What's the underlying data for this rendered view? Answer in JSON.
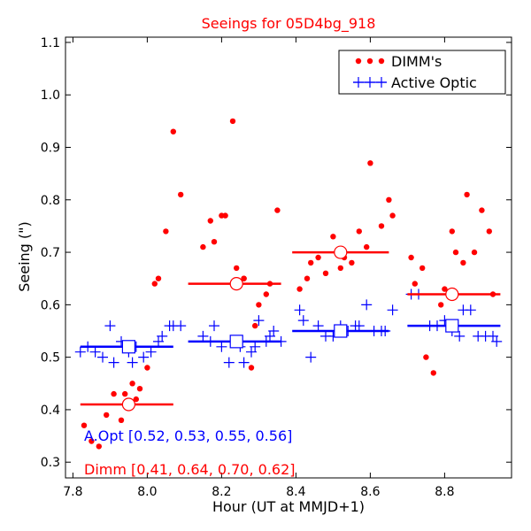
{
  "chart_data": {
    "type": "scatter",
    "title": "Seeings for 05D4bg_918",
    "xlabel": "Hour (UT at MMJD+1)",
    "ylabel": "Seeing (\")",
    "xlim": [
      7.78,
      8.98
    ],
    "ylim": [
      0.27,
      1.11
    ],
    "x_ticks": [
      7.8,
      8.0,
      8.2,
      8.4,
      8.6,
      8.8
    ],
    "x_tick_labels": [
      "7.8",
      "8.0",
      "8.2",
      "8.4",
      "8.6",
      "8.8"
    ],
    "y_ticks": [
      0.3,
      0.4,
      0.5,
      0.6,
      0.7,
      0.8,
      0.9,
      1.0,
      1.1
    ],
    "y_tick_labels": [
      "0.3",
      "0.4",
      "0.5",
      "0.6",
      "0.7",
      "0.8",
      "0.9",
      "1.0",
      "1.1"
    ],
    "legend_position": "top-right",
    "colors": {
      "dimm": "#ff0000",
      "active_optic": "#0000ff"
    },
    "series": [
      {
        "name": "DIMM's",
        "marker": "dot",
        "color": "#ff0000",
        "points": [
          [
            7.83,
            0.37
          ],
          [
            7.85,
            0.34
          ],
          [
            7.87,
            0.33
          ],
          [
            7.89,
            0.39
          ],
          [
            7.91,
            0.43
          ],
          [
            7.93,
            0.38
          ],
          [
            7.94,
            0.43
          ],
          [
            7.96,
            0.45
          ],
          [
            7.97,
            0.42
          ],
          [
            7.98,
            0.44
          ],
          [
            8.0,
            0.48
          ],
          [
            8.02,
            0.64
          ],
          [
            8.03,
            0.65
          ],
          [
            8.05,
            0.74
          ],
          [
            8.07,
            0.93
          ],
          [
            8.09,
            0.81
          ],
          [
            8.15,
            0.71
          ],
          [
            8.17,
            0.76
          ],
          [
            8.18,
            0.72
          ],
          [
            8.2,
            0.77
          ],
          [
            8.21,
            0.77
          ],
          [
            8.23,
            0.95
          ],
          [
            8.24,
            0.67
          ],
          [
            8.26,
            0.65
          ],
          [
            8.26,
            0.65
          ],
          [
            8.28,
            0.48
          ],
          [
            8.29,
            0.56
          ],
          [
            8.3,
            0.6
          ],
          [
            8.32,
            0.62
          ],
          [
            8.33,
            0.64
          ],
          [
            8.35,
            0.78
          ],
          [
            8.41,
            0.63
          ],
          [
            8.43,
            0.65
          ],
          [
            8.44,
            0.68
          ],
          [
            8.46,
            0.69
          ],
          [
            8.48,
            0.66
          ],
          [
            8.5,
            0.73
          ],
          [
            8.52,
            0.67
          ],
          [
            8.53,
            0.69
          ],
          [
            8.55,
            0.68
          ],
          [
            8.57,
            0.74
          ],
          [
            8.59,
            0.71
          ],
          [
            8.6,
            0.87
          ],
          [
            8.63,
            0.75
          ],
          [
            8.65,
            0.8
          ],
          [
            8.66,
            0.77
          ],
          [
            8.71,
            0.69
          ],
          [
            8.72,
            0.64
          ],
          [
            8.74,
            0.67
          ],
          [
            8.75,
            0.5
          ],
          [
            8.77,
            0.47
          ],
          [
            8.79,
            0.6
          ],
          [
            8.8,
            0.63
          ],
          [
            8.82,
            0.74
          ],
          [
            8.83,
            0.7
          ],
          [
            8.85,
            0.68
          ],
          [
            8.86,
            0.81
          ],
          [
            8.88,
            0.7
          ],
          [
            8.9,
            0.78
          ],
          [
            8.92,
            0.74
          ],
          [
            8.93,
            0.62
          ]
        ]
      },
      {
        "name": "Active Optic",
        "marker": "plus",
        "color": "#0000ff",
        "points": [
          [
            7.82,
            0.51
          ],
          [
            7.84,
            0.52
          ],
          [
            7.86,
            0.51
          ],
          [
            7.88,
            0.5
          ],
          [
            7.9,
            0.56
          ],
          [
            7.91,
            0.49
          ],
          [
            7.93,
            0.53
          ],
          [
            7.95,
            0.51
          ],
          [
            7.96,
            0.49
          ],
          [
            7.97,
            0.52
          ],
          [
            7.99,
            0.5
          ],
          [
            8.01,
            0.51
          ],
          [
            8.03,
            0.53
          ],
          [
            8.04,
            0.54
          ],
          [
            8.06,
            0.56
          ],
          [
            8.07,
            0.56
          ],
          [
            8.09,
            0.56
          ],
          [
            8.15,
            0.54
          ],
          [
            8.17,
            0.53
          ],
          [
            8.18,
            0.56
          ],
          [
            8.2,
            0.52
          ],
          [
            8.22,
            0.49
          ],
          [
            8.23,
            0.53
          ],
          [
            8.25,
            0.52
          ],
          [
            8.26,
            0.49
          ],
          [
            8.28,
            0.51
          ],
          [
            8.29,
            0.52
          ],
          [
            8.3,
            0.57
          ],
          [
            8.32,
            0.53
          ],
          [
            8.33,
            0.54
          ],
          [
            8.34,
            0.55
          ],
          [
            8.36,
            0.53
          ],
          [
            8.41,
            0.59
          ],
          [
            8.42,
            0.57
          ],
          [
            8.44,
            0.5
          ],
          [
            8.46,
            0.56
          ],
          [
            8.48,
            0.54
          ],
          [
            8.5,
            0.54
          ],
          [
            8.52,
            0.56
          ],
          [
            8.54,
            0.55
          ],
          [
            8.56,
            0.56
          ],
          [
            8.57,
            0.56
          ],
          [
            8.59,
            0.6
          ],
          [
            8.61,
            0.55
          ],
          [
            8.63,
            0.55
          ],
          [
            8.64,
            0.55
          ],
          [
            8.66,
            0.59
          ],
          [
            8.71,
            0.62
          ],
          [
            8.73,
            0.62
          ],
          [
            8.76,
            0.56
          ],
          [
            8.78,
            0.56
          ],
          [
            8.8,
            0.57
          ],
          [
            8.82,
            0.55
          ],
          [
            8.84,
            0.54
          ],
          [
            8.85,
            0.59
          ],
          [
            8.87,
            0.59
          ],
          [
            8.89,
            0.54
          ],
          [
            8.91,
            0.54
          ],
          [
            8.93,
            0.54
          ],
          [
            8.94,
            0.53
          ]
        ]
      }
    ],
    "bins": [
      {
        "x_range": [
          7.82,
          8.07
        ],
        "center": 7.95,
        "dimm": 0.41,
        "aopt": 0.52
      },
      {
        "x_range": [
          8.11,
          8.36
        ],
        "center": 8.24,
        "dimm": 0.64,
        "aopt": 0.53
      },
      {
        "x_range": [
          8.39,
          8.65
        ],
        "center": 8.52,
        "dimm": 0.7,
        "aopt": 0.55
      },
      {
        "x_range": [
          8.7,
          8.95
        ],
        "center": 8.82,
        "dimm": 0.62,
        "aopt": 0.56
      }
    ],
    "annotations": [
      {
        "text": "A.Opt [0.52, 0.53, 0.55, 0.56]",
        "color": "#0000ff"
      },
      {
        "text": "Dimm [0.41, 0.64, 0.70, 0.62]",
        "color": "#ff0000"
      }
    ]
  }
}
